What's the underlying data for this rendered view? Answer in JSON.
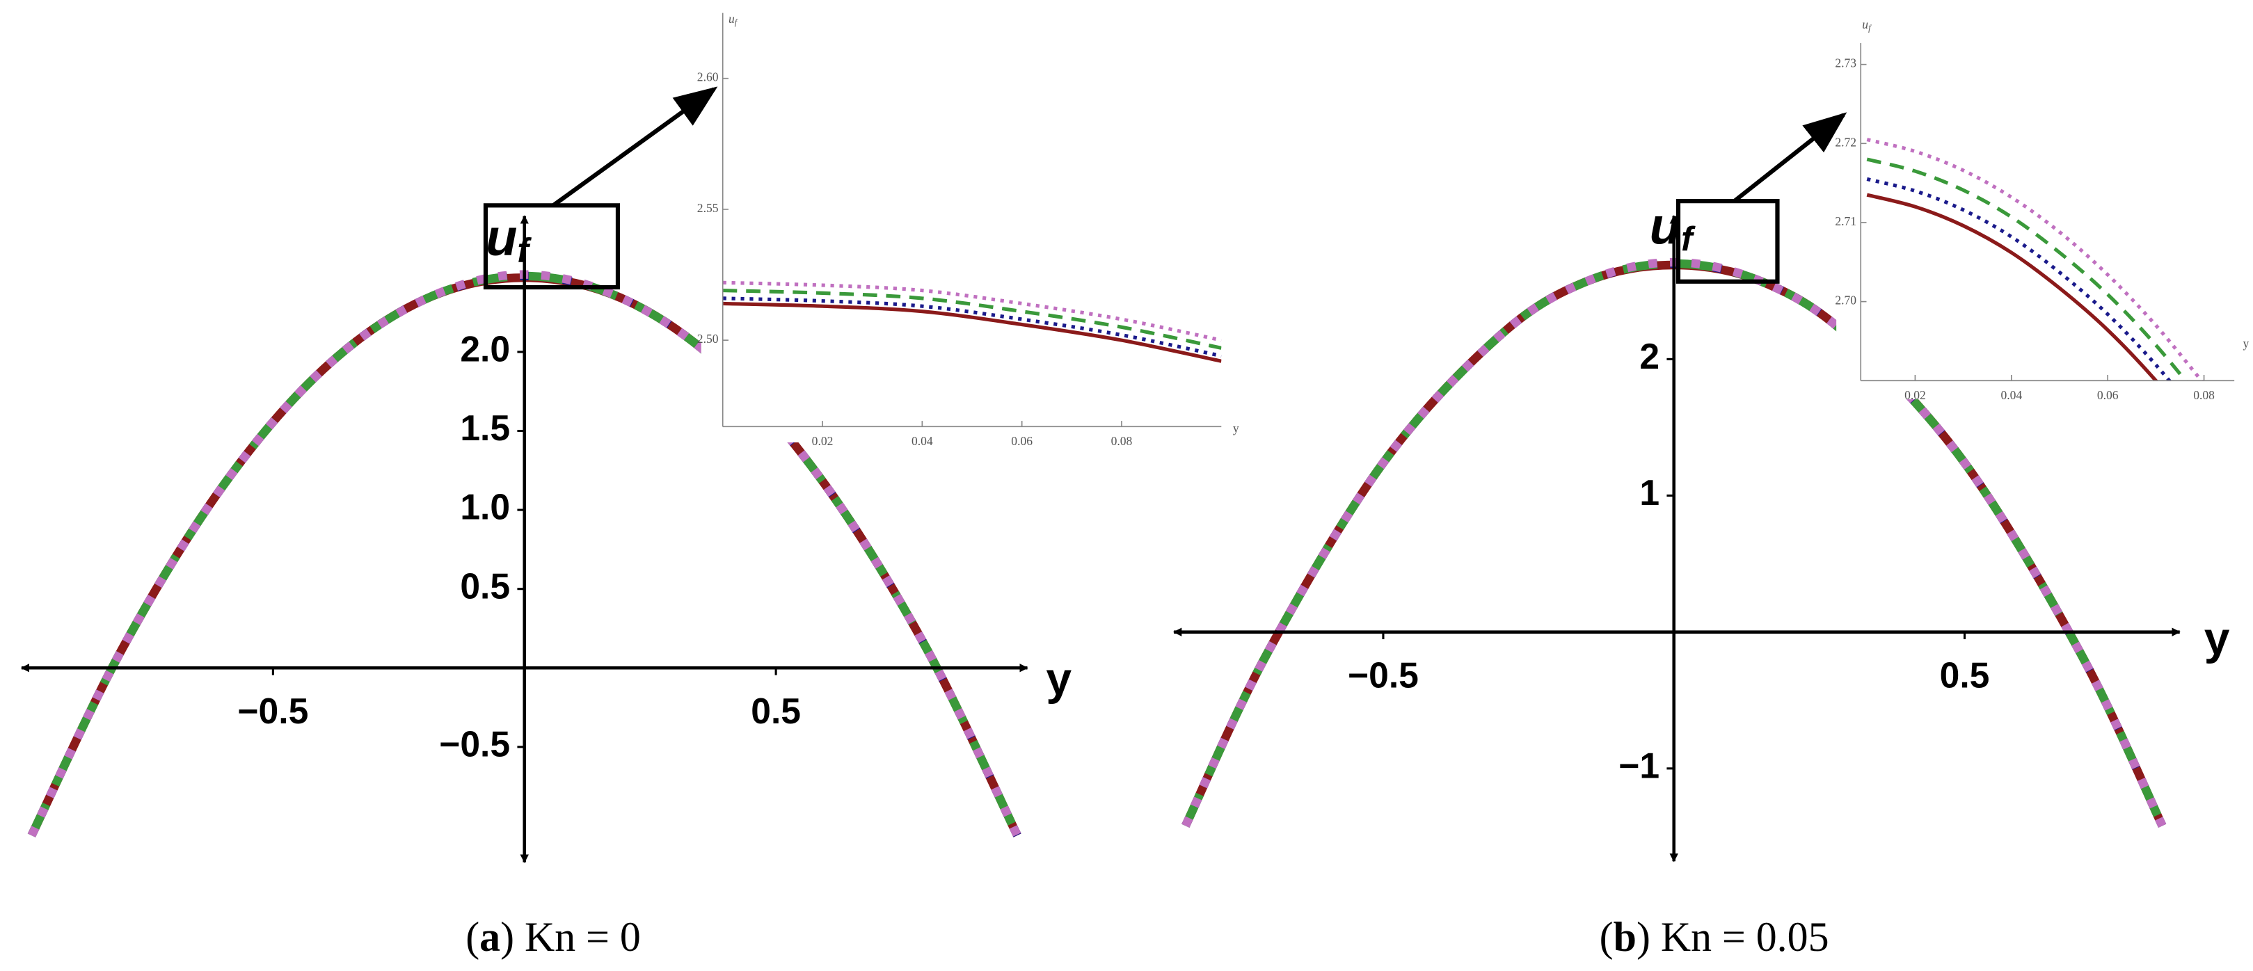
{
  "chart_data": [
    {
      "type": "line",
      "x": [
        -0.98,
        -0.8,
        -0.6,
        -0.4,
        -0.2,
        0,
        0.2,
        0.4,
        0.6,
        0.8,
        0.98
      ],
      "series": [
        {
          "color": "#8b1a1a",
          "style": "solid",
          "values": [
            -1.06,
            0.12,
            1.15,
            1.89,
            2.33,
            2.47,
            2.33,
            1.89,
            1.15,
            0.12,
            -1.06
          ]
        },
        {
          "color": "#1a1a8b",
          "style": "dotted",
          "values": [
            -1.06,
            0.12,
            1.15,
            1.89,
            2.33,
            2.48,
            2.33,
            1.89,
            1.15,
            0.12,
            -1.06
          ]
        },
        {
          "color": "#3a993a",
          "style": "dashed",
          "values": [
            -1.06,
            0.12,
            1.15,
            1.89,
            2.33,
            2.48,
            2.33,
            1.89,
            1.15,
            0.12,
            -1.06
          ]
        },
        {
          "color": "#c070c0",
          "style": "dotted",
          "values": [
            -1.06,
            0.12,
            1.15,
            1.89,
            2.33,
            2.49,
            2.33,
            1.89,
            1.15,
            0.12,
            -1.06
          ]
        }
      ],
      "xlim": [
        -1.0,
        1.0
      ],
      "ylim": [
        -1.23,
        2.86
      ],
      "xticks": [
        {
          "value": -0.5,
          "label": "−0.5"
        },
        0.5
      ],
      "yticks": [
        {
          "value": -0.5,
          "label": "−0.5"
        },
        0.5,
        {
          "value": 1,
          "label": "1.0"
        },
        1.5,
        {
          "value": 2,
          "label": "2.0"
        }
      ],
      "xlabel": "y",
      "ylabel": "u",
      "ylabel_subscript": "f",
      "caption": [
        "(",
        "a",
        ") Kn = 0"
      ]
    },
    {
      "type": "line",
      "x": [
        0,
        0.02,
        0.04,
        0.06,
        0.08,
        0.1
      ],
      "series": [
        {
          "color": "#8b1a1a",
          "style": "solid",
          "values": [
            2.514,
            2.513,
            2.511,
            2.506,
            2.5,
            2.492
          ]
        },
        {
          "color": "#1a1a8b",
          "style": "dotted",
          "values": [
            2.516,
            2.515,
            2.513,
            2.508,
            2.502,
            2.494
          ]
        },
        {
          "color": "#3a993a",
          "style": "dashed",
          "values": [
            2.519,
            2.518,
            2.516,
            2.511,
            2.505,
            2.497
          ]
        },
        {
          "color": "#c070c0",
          "style": "dotted",
          "values": [
            2.522,
            2.521,
            2.519,
            2.514,
            2.508,
            2.5
          ]
        }
      ],
      "xlim": [
        0,
        0.1
      ],
      "ylim": [
        2.467,
        2.625
      ],
      "xticks": [
        0.02,
        0.04,
        0.06,
        0.08
      ],
      "yticks": [
        {
          "value": 2.5,
          "label": "2.50"
        },
        2.55,
        {
          "value": 2.6,
          "label": "2.60"
        }
      ],
      "xlabel": "y",
      "ylabel": "u",
      "ylabel_subscript": "f"
    },
    {
      "type": "line",
      "x": [
        -0.84,
        -0.7,
        -0.5,
        -0.3,
        -0.15,
        0,
        0.15,
        0.3,
        0.5,
        0.7,
        0.84
      ],
      "series": [
        {
          "color": "#8b1a1a",
          "style": "solid",
          "values": [
            -1.42,
            -0.16,
            1.24,
            2.17,
            2.57,
            2.69,
            2.57,
            2.17,
            1.24,
            -0.16,
            -1.42
          ]
        },
        {
          "color": "#1a1a8b",
          "style": "dotted",
          "values": [
            -1.42,
            -0.16,
            1.24,
            2.17,
            2.57,
            2.7,
            2.57,
            2.17,
            1.24,
            -0.16,
            -1.42
          ]
        },
        {
          "color": "#3a993a",
          "style": "dashed",
          "values": [
            -1.42,
            -0.16,
            1.24,
            2.17,
            2.57,
            2.7,
            2.57,
            2.17,
            1.24,
            -0.16,
            -1.42
          ]
        },
        {
          "color": "#c070c0",
          "style": "dotted",
          "values": [
            -1.42,
            -0.16,
            1.24,
            2.17,
            2.57,
            2.71,
            2.57,
            2.17,
            1.24,
            -0.16,
            -1.42
          ]
        }
      ],
      "xlim": [
        -0.86,
        0.87
      ],
      "ylim": [
        -1.68,
        3.05
      ],
      "xticks": [
        {
          "value": -0.5,
          "label": "−0.5"
        },
        0.5
      ],
      "yticks": [
        {
          "value": -1,
          "label": "−1"
        },
        1,
        2
      ],
      "xlabel": "y",
      "ylabel": "u",
      "ylabel_subscript": "f",
      "caption": [
        "(",
        "b",
        ") Kn = 0.05"
      ]
    },
    {
      "type": "line",
      "x": [
        0.01,
        0.02,
        0.03,
        0.04,
        0.05,
        0.06,
        0.07,
        0.08
      ],
      "series": [
        {
          "color": "#8b1a1a",
          "style": "solid",
          "values": [
            2.7135,
            2.712,
            2.7096,
            2.7062,
            2.7017,
            2.6964,
            2.69,
            2.6826
          ]
        },
        {
          "color": "#1a1a8b",
          "style": "dotted",
          "values": [
            2.7155,
            2.714,
            2.7116,
            2.7082,
            2.7037,
            2.6984,
            2.692,
            2.6846
          ]
        },
        {
          "color": "#3a993a",
          "style": "dashed",
          "values": [
            2.718,
            2.7165,
            2.7141,
            2.7107,
            2.7062,
            2.7009,
            2.6945,
            2.6871
          ]
        },
        {
          "color": "#c070c0",
          "style": "dotted",
          "values": [
            2.7205,
            2.719,
            2.7166,
            2.7132,
            2.7088,
            2.7034,
            2.697,
            2.6896
          ]
        }
      ],
      "xlim": [
        0.0087,
        0.0863
      ],
      "ylim": [
        2.69,
        2.7327
      ],
      "xticks": [
        0.02,
        0.04,
        0.06,
        0.08
      ],
      "yticks": [
        {
          "value": 2.7,
          "label": "2.70"
        },
        2.71,
        2.72,
        2.73
      ],
      "xlabel": "y",
      "ylabel": "u",
      "ylabel_subscript": "f"
    }
  ]
}
